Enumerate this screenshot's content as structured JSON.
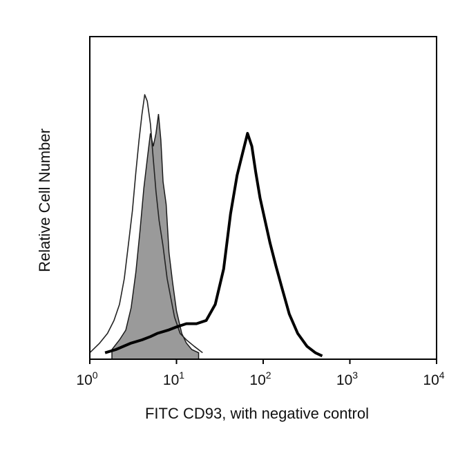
{
  "chart_data": {
    "type": "area",
    "xlabel": "FITC CD93, with negative control",
    "ylabel": "Relative Cell Number",
    "x_scale": "log",
    "xlim": [
      1,
      10000
    ],
    "ylim": [
      0,
      1
    ],
    "grid": false,
    "x_ticks": [
      {
        "base": "10",
        "exp": "0",
        "value": 1
      },
      {
        "base": "10",
        "exp": "1",
        "value": 10
      },
      {
        "base": "10",
        "exp": "2",
        "value": 100
      },
      {
        "base": "10",
        "exp": "3",
        "value": 1000
      },
      {
        "base": "10",
        "exp": "4",
        "value": 10000
      }
    ],
    "series": [
      {
        "style": "gray-filled",
        "fill": "#9a9a9a",
        "stroke": "#1a1a1a",
        "x": [
          1.8,
          2.2,
          2.6,
          3.0,
          3.4,
          3.8,
          4.2,
          4.6,
          5.0,
          5.4,
          5.8,
          6.2,
          6.6,
          7.0,
          7.6,
          8.2,
          9.0,
          10.0,
          11.5,
          13.0,
          15.0,
          18.0
        ],
        "y": [
          0.03,
          0.06,
          0.09,
          0.16,
          0.27,
          0.4,
          0.53,
          0.62,
          0.7,
          0.66,
          0.7,
          0.76,
          0.68,
          0.55,
          0.48,
          0.33,
          0.24,
          0.15,
          0.08,
          0.05,
          0.03,
          0.02
        ]
      },
      {
        "style": "thin-line",
        "stroke": "#222222",
        "x": [
          1.0,
          1.3,
          1.6,
          1.9,
          2.2,
          2.5,
          2.8,
          3.1,
          3.4,
          3.7,
          4.0,
          4.3,
          4.6,
          5.0,
          5.4,
          5.8,
          6.3,
          7.0,
          7.8,
          8.6,
          9.5,
          11.0,
          13.0,
          16.0,
          20.0
        ],
        "y": [
          0.02,
          0.05,
          0.08,
          0.12,
          0.17,
          0.25,
          0.36,
          0.46,
          0.58,
          0.68,
          0.76,
          0.82,
          0.8,
          0.73,
          0.62,
          0.52,
          0.43,
          0.35,
          0.25,
          0.19,
          0.13,
          0.08,
          0.06,
          0.04,
          0.02
        ]
      },
      {
        "style": "thick-line",
        "stroke": "#000000",
        "x": [
          1.5,
          2.0,
          3.0,
          4.0,
          5.0,
          6.0,
          8.0,
          10.0,
          13.0,
          17.0,
          22.0,
          28.0,
          35.0,
          42.0,
          50.0,
          58.0,
          66.0,
          74.0,
          82.0,
          92.0,
          105.0,
          120.0,
          140.0,
          165.0,
          200.0,
          250.0,
          320.0,
          400.0,
          480.0
        ],
        "y": [
          0.02,
          0.03,
          0.05,
          0.06,
          0.07,
          0.08,
          0.09,
          0.1,
          0.11,
          0.11,
          0.12,
          0.17,
          0.28,
          0.45,
          0.57,
          0.64,
          0.7,
          0.66,
          0.58,
          0.5,
          0.43,
          0.36,
          0.29,
          0.22,
          0.14,
          0.08,
          0.04,
          0.02,
          0.01
        ]
      }
    ]
  }
}
